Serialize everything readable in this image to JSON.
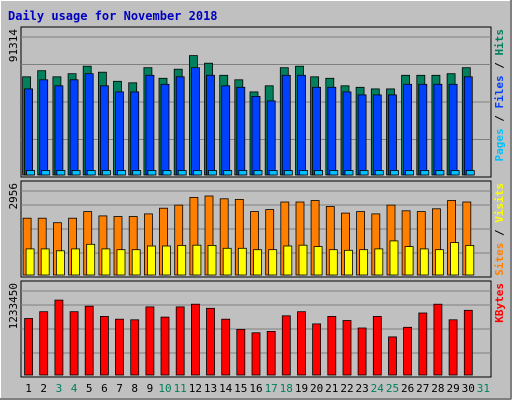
{
  "chart_data": {
    "type": "bar",
    "title": "Daily usage for November 2018",
    "colors": {
      "background": "#c0c0c0",
      "title": "#0000c0",
      "hits": "#00805c",
      "files": "#0040ff",
      "pages": "#00c0ff",
      "visits": "#ffff00",
      "sites": "#ff8000",
      "kbytes": "#ff0000",
      "weekend_label": "#00805c",
      "weekday_label": "#000000"
    },
    "categories": [
      "1",
      "2",
      "3",
      "4",
      "5",
      "6",
      "7",
      "8",
      "9",
      "10",
      "11",
      "12",
      "13",
      "14",
      "15",
      "16",
      "17",
      "18",
      "19",
      "20",
      "21",
      "22",
      "23",
      "24",
      "25",
      "26",
      "27",
      "28",
      "29",
      "30",
      "31"
    ],
    "weekend_days": [
      "3",
      "4",
      "10",
      "11",
      "17",
      "18",
      "24",
      "25",
      "31"
    ],
    "panels": [
      {
        "id": "hits-files-pages",
        "ylabel_max": "91314",
        "ymax": 91314,
        "legend": [
          {
            "text": "Pages",
            "color_key": "pages"
          },
          {
            "text": "Files",
            "color_key": "files"
          },
          {
            "text": "Hits",
            "color_key": "hits"
          }
        ],
        "series": [
          {
            "name": "Hits",
            "color_key": "hits",
            "values": [
              65000,
              69000,
              65000,
              67000,
              72000,
              68000,
              62000,
              61000,
              71000,
              64000,
              70000,
              79000,
              74000,
              66000,
              63000,
              55000,
              59000,
              71000,
              72000,
              65000,
              64000,
              59000,
              58000,
              57000,
              57000,
              66000,
              66000,
              66000,
              67000,
              71000,
              0
            ]
          },
          {
            "name": "Files",
            "color_key": "files",
            "values": [
              57000,
              63000,
              59000,
              63000,
              67000,
              59000,
              55000,
              55000,
              66000,
              60000,
              65000,
              71000,
              66000,
              59000,
              58000,
              52000,
              49000,
              66000,
              66000,
              58000,
              58000,
              55000,
              53000,
              53000,
              53000,
              60000,
              60000,
              60000,
              60000,
              65000,
              0
            ]
          },
          {
            "name": "Pages",
            "color_key": "pages",
            "values": [
              3000,
              3000,
              3000,
              3000,
              3000,
              3000,
              3000,
              3000,
              3000,
              3000,
              3000,
              3000,
              3000,
              3000,
              3000,
              3000,
              3000,
              3000,
              3000,
              3000,
              3000,
              3000,
              3000,
              3000,
              3000,
              3000,
              3000,
              3000,
              3000,
              3000,
              0
            ]
          }
        ]
      },
      {
        "id": "visits-sites",
        "ylabel_max": "2956",
        "ymax": 2956,
        "legend": [
          {
            "text": "Sites",
            "color_key": "sites"
          },
          {
            "text": "Visits",
            "color_key": "visits"
          }
        ],
        "series": [
          {
            "name": "Sites",
            "color_key": "sites",
            "values": [
              2000,
              2000,
              1840,
              2000,
              2230,
              2080,
              2060,
              2060,
              2150,
              2350,
              2460,
              2730,
              2780,
              2680,
              2660,
              2230,
              2300,
              2570,
              2570,
              2620,
              2410,
              2180,
              2230,
              2150,
              2460,
              2260,
              2230,
              2330,
              2620,
              2570,
              0
            ]
          },
          {
            "name": "Visits",
            "color_key": "visits",
            "values": [
              920,
              920,
              850,
              920,
              1080,
              920,
              890,
              890,
              1020,
              1020,
              1040,
              1050,
              1040,
              940,
              940,
              890,
              890,
              1020,
              1050,
              1000,
              890,
              870,
              890,
              920,
              1200,
              1000,
              920,
              890,
              1140,
              1040,
              0
            ]
          }
        ]
      },
      {
        "id": "kbytes",
        "ylabel_max": "1233450",
        "ymax": 1233450,
        "legend": [
          {
            "text": "KBytes",
            "color_key": "kbytes"
          }
        ],
        "series": [
          {
            "name": "KBytes",
            "color_key": "kbytes",
            "values": [
              830000,
              930000,
              1100000,
              930000,
              1010000,
              860000,
              820000,
              810000,
              1000000,
              850000,
              1000000,
              1040000,
              980000,
              820000,
              670000,
              620000,
              640000,
              870000,
              930000,
              750000,
              860000,
              800000,
              690000,
              860000,
              560000,
              700000,
              910000,
              1040000,
              810000,
              950000,
              0
            ]
          }
        ]
      }
    ]
  }
}
